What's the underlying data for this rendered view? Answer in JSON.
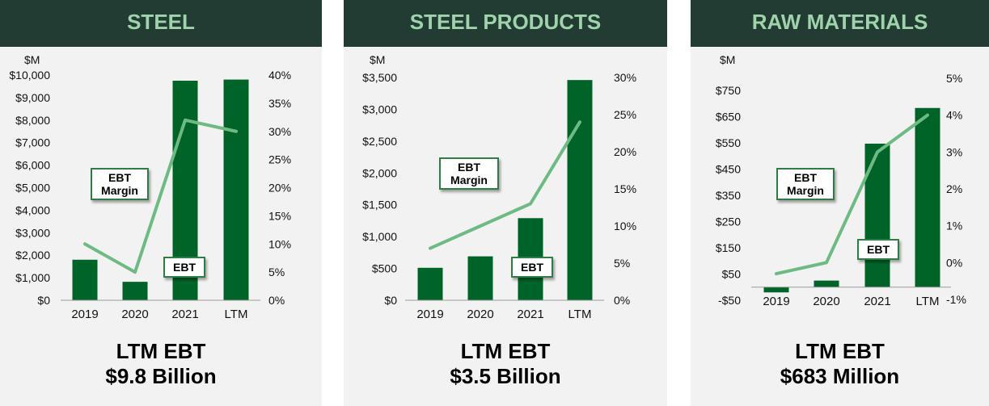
{
  "colors": {
    "header_bg": "#223b33",
    "header_text": "#9fd3ab",
    "bar": "#006428",
    "line": "#6dbb83",
    "panel_bg": "#f2f2f2"
  },
  "chart_data": [
    {
      "type": "bar",
      "title": "STEEL",
      "ylabel": "$M",
      "categories": [
        "2019",
        "2020",
        "2021",
        "LTM"
      ],
      "series": [
        {
          "name": "EBT",
          "type": "bar",
          "axis": "left",
          "values": [
            1800,
            820,
            9750,
            9800
          ]
        },
        {
          "name": "EBT Margin",
          "type": "line",
          "axis": "right",
          "values": [
            10,
            5,
            32,
            30
          ]
        }
      ],
      "ylim": [
        0,
        10000
      ],
      "y_ticks": [
        "$0",
        "$1,000",
        "$2,000",
        "$3,000",
        "$4,000",
        "$5,000",
        "$6,000",
        "$7,000",
        "$8,000",
        "$9,000",
        "$10,000"
      ],
      "y2lim": [
        0,
        40
      ],
      "y2_ticks": [
        "0%",
        "5%",
        "10%",
        "15%",
        "20%",
        "25%",
        "30%",
        "35%",
        "40%"
      ],
      "annotations": {
        "margin": "EBT\nMargin",
        "ebt": "EBT"
      },
      "summary": {
        "line1": "LTM EBT",
        "line2": "$9.8 Billion"
      }
    },
    {
      "type": "bar",
      "title": "STEEL PRODUCTS",
      "ylabel": "$M",
      "categories": [
        "2019",
        "2020",
        "2021",
        "LTM"
      ],
      "series": [
        {
          "name": "EBT",
          "type": "bar",
          "axis": "left",
          "values": [
            510,
            690,
            1290,
            3460
          ]
        },
        {
          "name": "EBT Margin",
          "type": "line",
          "axis": "right",
          "values": [
            7,
            10,
            13,
            24
          ]
        }
      ],
      "ylim": [
        0,
        3500
      ],
      "y_ticks": [
        "$0",
        "$500",
        "$1,000",
        "$1,500",
        "$2,000",
        "$2,500",
        "$3,000",
        "$3,500"
      ],
      "y2lim": [
        0,
        30
      ],
      "y2_ticks": [
        "0%",
        "5%",
        "10%",
        "15%",
        "20%",
        "25%",
        "30%"
      ],
      "annotations": {
        "margin": "EBT\nMargin",
        "ebt": "EBT"
      },
      "summary": {
        "line1": "LTM EBT",
        "line2": "$3.5 Billion"
      }
    },
    {
      "type": "bar",
      "title": "RAW MATERIALS",
      "ylabel": "$M",
      "categories": [
        "2019",
        "2020",
        "2021",
        "LTM"
      ],
      "series": [
        {
          "name": "EBT",
          "type": "bar",
          "axis": "left",
          "values": [
            -20,
            25,
            547,
            683
          ]
        },
        {
          "name": "EBT Margin",
          "type": "line",
          "axis": "right",
          "values": [
            -0.3,
            0,
            3,
            4
          ]
        }
      ],
      "ylim": [
        -50,
        850
      ],
      "y_ticks": [
        "-$50",
        "$50",
        "$150",
        "$250",
        "$350",
        "$450",
        "$550",
        "$650",
        "$750"
      ],
      "y_tick_values": [
        -50,
        50,
        150,
        250,
        350,
        450,
        550,
        650,
        750
      ],
      "y2lim": [
        -1,
        5
      ],
      "y2_ticks": [
        "-1%",
        "0%",
        "1%",
        "2%",
        "3%",
        "4%",
        "5%"
      ],
      "annotations": {
        "margin": "EBT\nMargin",
        "ebt": "EBT"
      },
      "summary": {
        "line1": "LTM EBT",
        "line2": "$683 Million"
      }
    }
  ]
}
